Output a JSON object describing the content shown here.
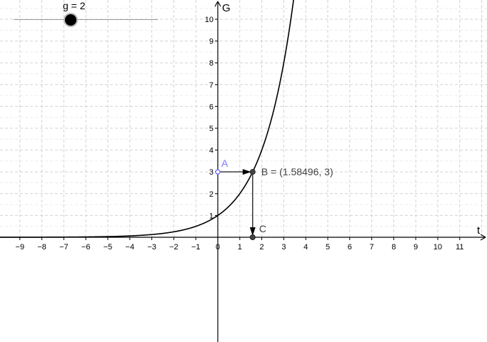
{
  "slider": {
    "label": "g = 2",
    "value": 2
  },
  "axes": {
    "x_label": "t",
    "y_label": "G",
    "x_ticks": [
      "−9",
      "−8",
      "−7",
      "−6",
      "−5",
      "−4",
      "−3",
      "−2",
      "−1",
      "0",
      "1",
      "2",
      "3",
      "4",
      "5",
      "6",
      "7",
      "8",
      "9",
      "10",
      "11"
    ],
    "y_ticks": [
      "1",
      "2",
      "3",
      "4",
      "5",
      "6",
      "7",
      "8",
      "9",
      "10"
    ]
  },
  "points": {
    "A": {
      "label": "A",
      "x": 0,
      "y": 3,
      "color": "#7a7aff"
    },
    "B": {
      "label": "B = (1.58496, 3)",
      "x": 1.58496,
      "y": 3,
      "color": "#444444"
    },
    "C": {
      "label": "C",
      "x": 1.58496,
      "y": 0,
      "color": "#444444"
    }
  },
  "chart_data": {
    "type": "line",
    "function": "G = g^t",
    "base": 2,
    "xlim": [
      -10,
      12
    ],
    "ylim": [
      0,
      10.6
    ],
    "grid": true,
    "xlabel": "t",
    "ylabel": "G",
    "series": [
      {
        "name": "",
        "x": [
          -10,
          -8,
          -6,
          -4,
          -2,
          0,
          1,
          1.58496,
          2,
          3,
          3.4
        ],
        "y": [
          0.00098,
          0.0039,
          0.0156,
          0.0625,
          0.25,
          1,
          2,
          3,
          4,
          8,
          10.56
        ]
      }
    ],
    "arrows": [
      {
        "from": [
          0,
          3
        ],
        "to": [
          1.58496,
          3
        ]
      },
      {
        "from": [
          1.58496,
          3
        ],
        "to": [
          1.58496,
          0
        ]
      }
    ]
  }
}
